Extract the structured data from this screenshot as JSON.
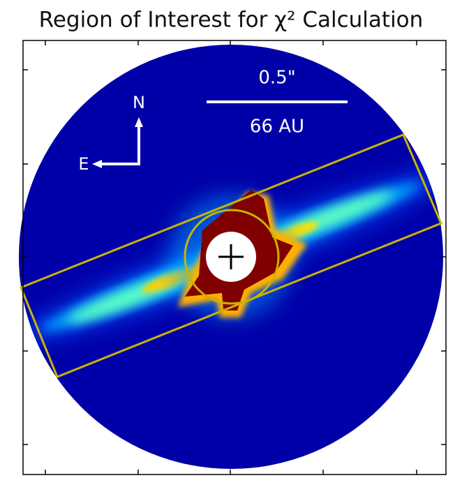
{
  "title": "Region of Interest for χ² Calculation",
  "scale_bar": {
    "angle": "0.5\"",
    "distance": "66 AU"
  },
  "compass": {
    "north": "N",
    "east": "E"
  }
}
